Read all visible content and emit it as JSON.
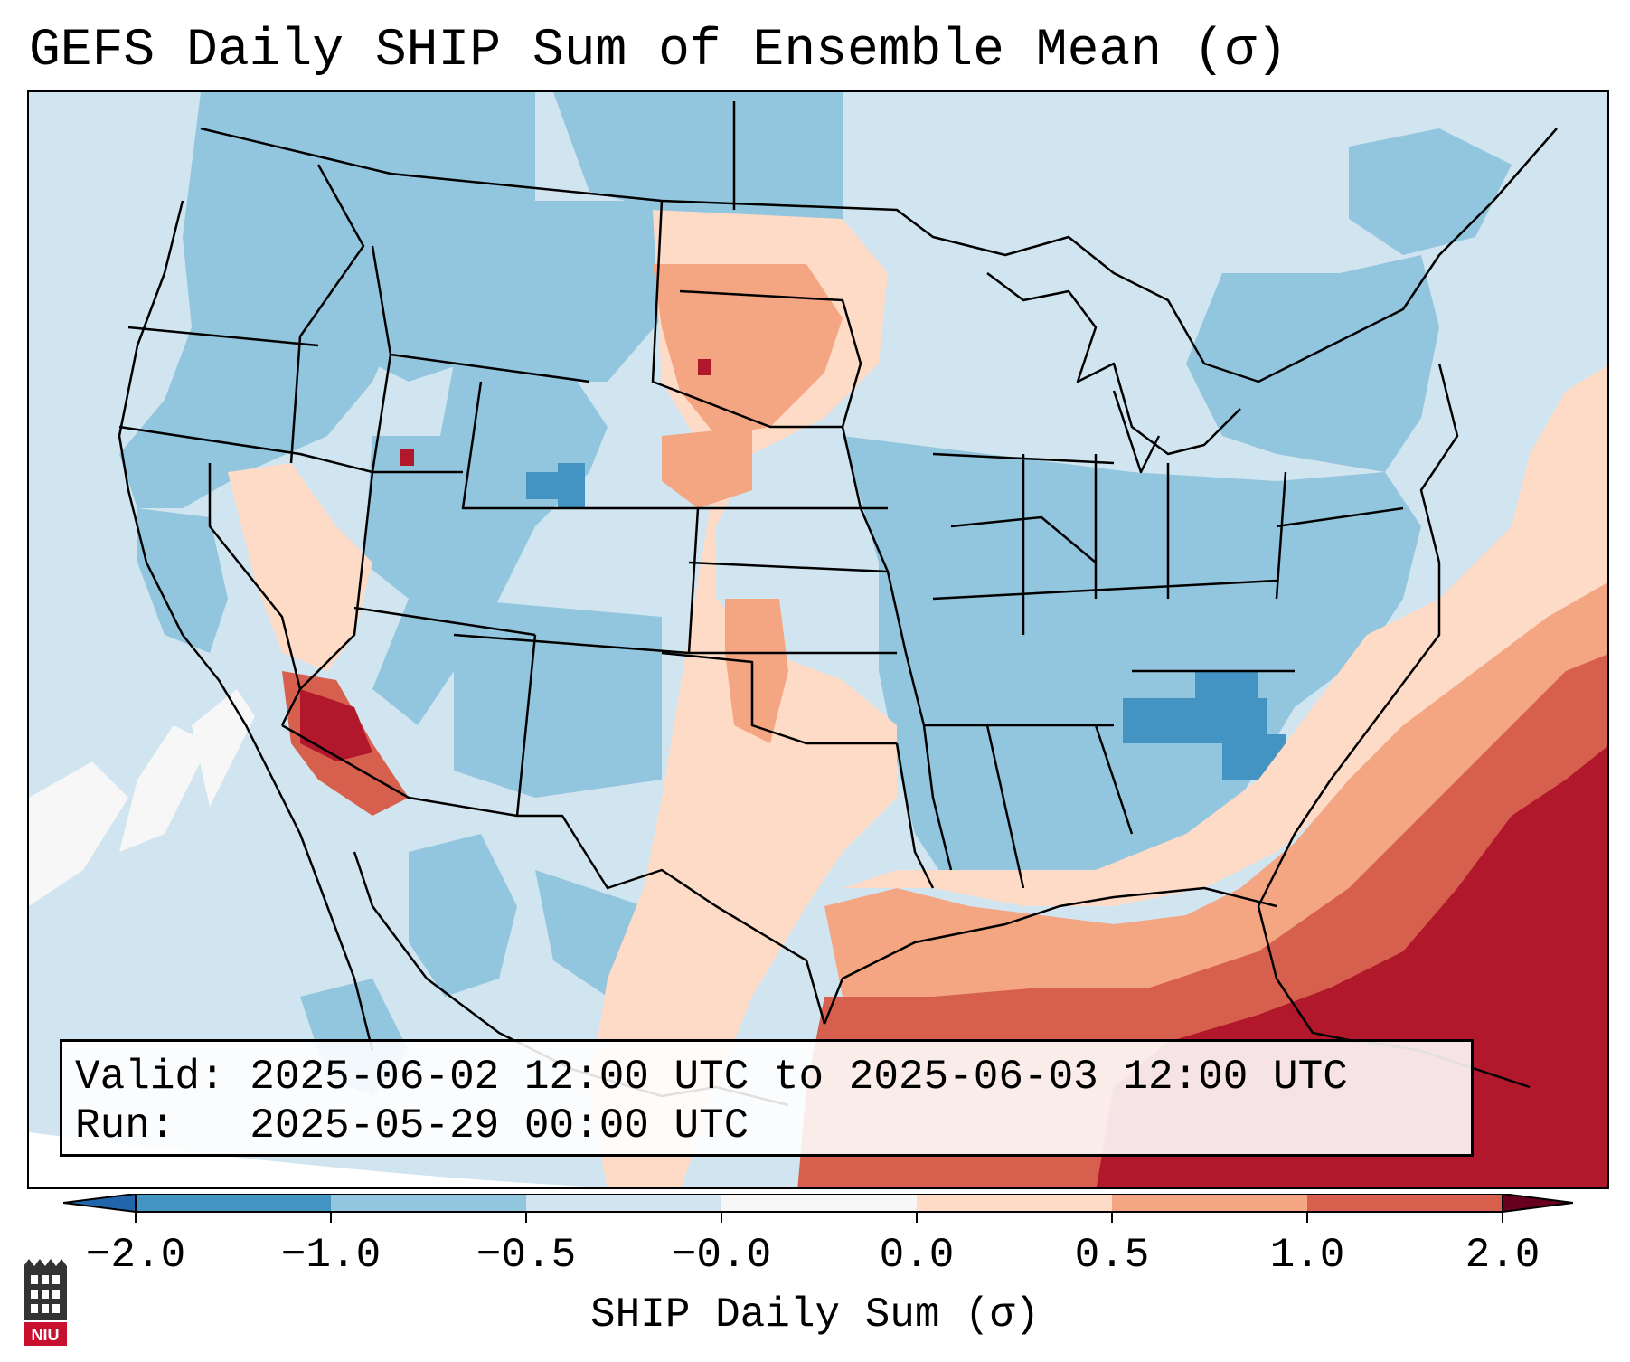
{
  "title": "GEFS Daily SHIP Sum of Ensemble Mean (σ)",
  "info": {
    "valid_prefix": "Valid: ",
    "valid_value": "2025-06-02 12:00 UTC to 2025-06-03 12:00 UTC",
    "run_prefix": "Run:   ",
    "run_value": "2025-05-29 00:00 UTC"
  },
  "colorbar": {
    "label": "SHIP Daily Sum (σ)",
    "ticks": [
      "−2.0",
      "−1.0",
      "−0.5",
      "−0.0",
      "0.0",
      "0.5",
      "1.0",
      "2.0"
    ],
    "colors": {
      "lt_-1": "#4393c3",
      "-1_-0.5": "#92c5de",
      "-0.5_0": "#d1e5f0",
      "0_0.5": "#fddbc7",
      "0.5_1": "#f4a582",
      "1_2": "#d6604d",
      "gt_2": "#b2182b",
      "extend_low": "#2166ac",
      "extend_high": "#67001f"
    }
  },
  "logo": {
    "text": "NIU"
  }
}
